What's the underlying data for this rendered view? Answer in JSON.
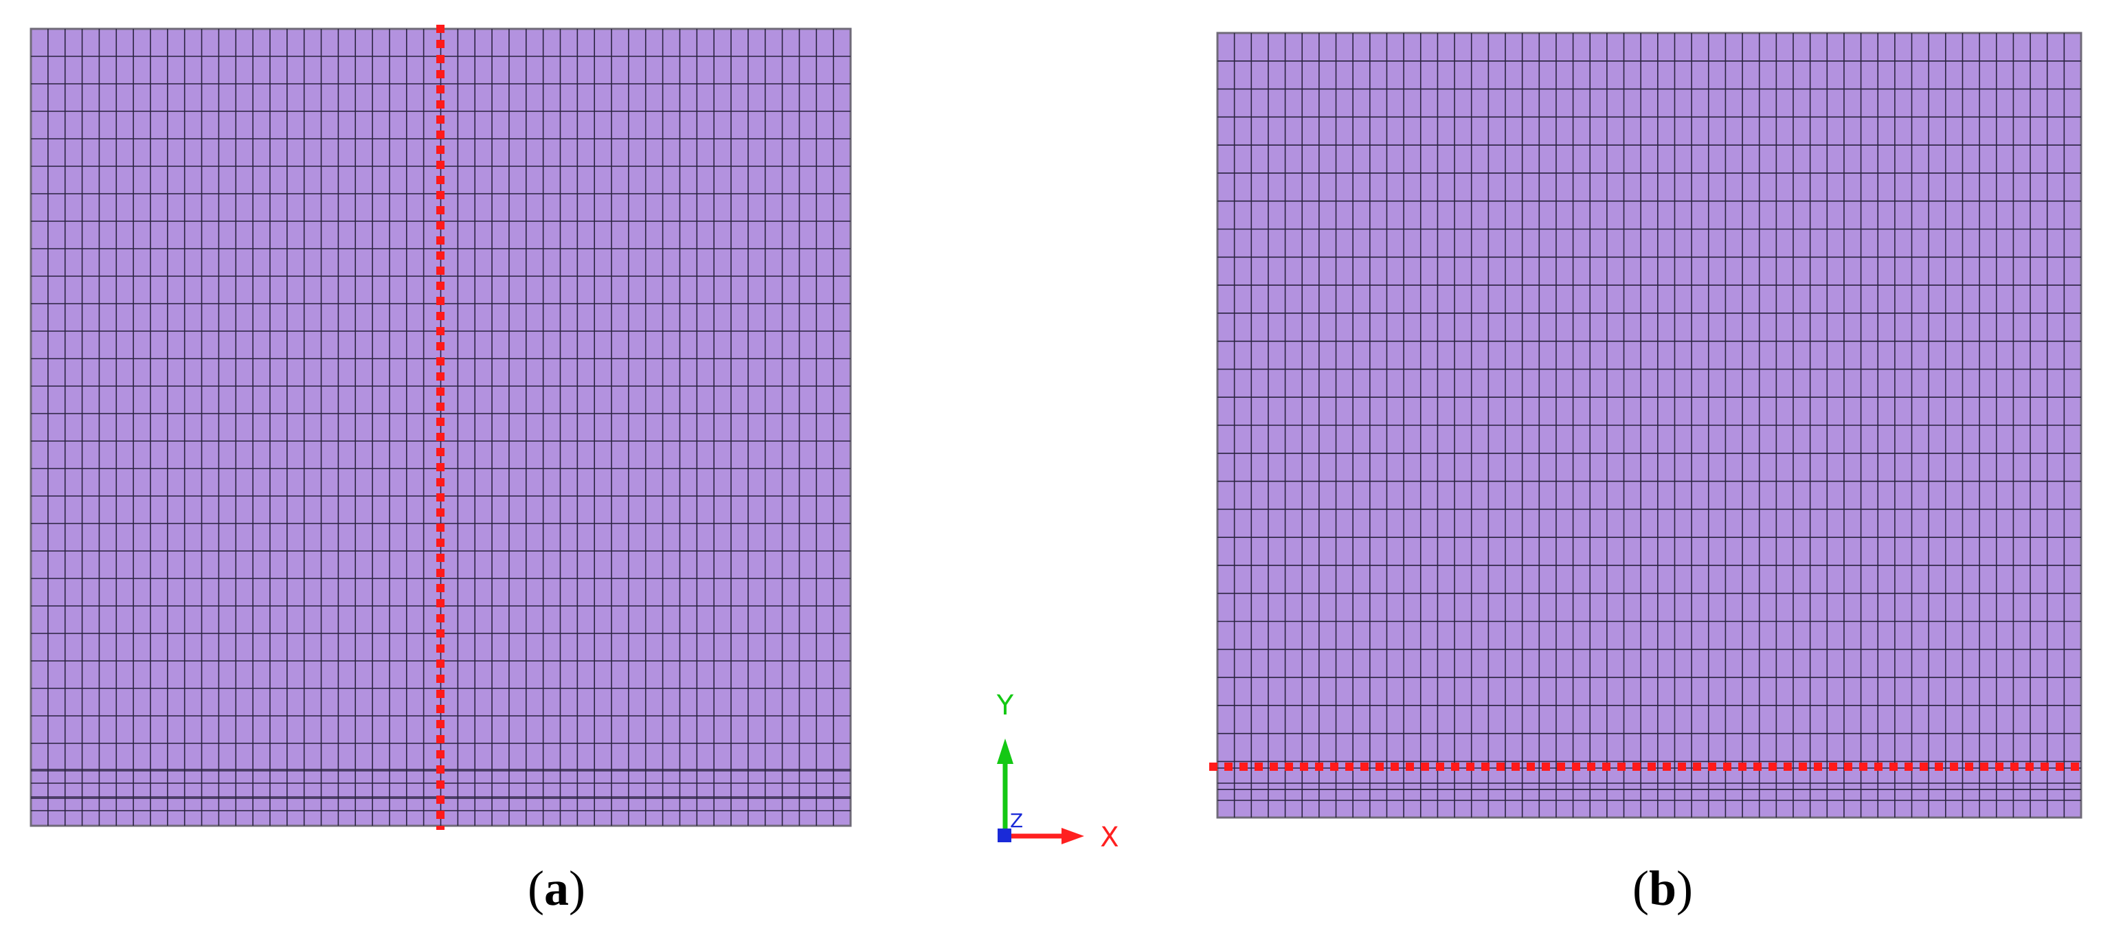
{
  "panels": [
    {
      "id": "a",
      "label_open": "(",
      "label_letter": "a",
      "label_close": ")"
    },
    {
      "id": "b",
      "label_open": "(",
      "label_letter": "b",
      "label_close": ")"
    }
  ],
  "axes": {
    "x_label": "X",
    "y_label": "Y",
    "z_label": "Z"
  },
  "colors": {
    "mesh_fill": "#b392df",
    "mesh_line": "#2a2340",
    "cut_line": "#ff1a1a",
    "x_axis": "#ff2020",
    "y_axis": "#14c814",
    "z_axis": "#1a2ad8"
  }
}
